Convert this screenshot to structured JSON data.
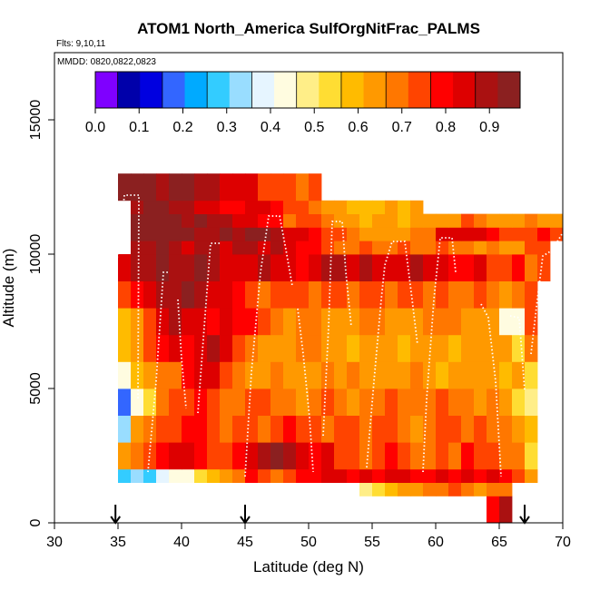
{
  "chart_data": {
    "type": "heatmap",
    "title": "ATOM1 North_America SulfOrgNitFrac_PALMS",
    "flights_label": "Flts: 9,10,11",
    "dates_label": "MMDD: 0820,0822,0823",
    "xlabel": "Latitude (deg N)",
    "ylabel": "Altitude (m)",
    "xlim": [
      30,
      70
    ],
    "ylim": [
      0,
      17500
    ],
    "xticks": [
      30,
      35,
      40,
      45,
      50,
      55,
      60,
      65,
      70
    ],
    "yticks": [
      0,
      5000,
      10000,
      15000
    ],
    "colorbar": {
      "range": [
        0,
        0.97
      ],
      "tick_values": [
        0.0,
        0.1,
        0.2,
        0.3,
        0.4,
        0.5,
        0.6,
        0.7,
        0.8,
        0.9
      ],
      "tick_labels": [
        "0.0",
        "0.1",
        "0.2",
        "0.3",
        "0.4",
        "0.5",
        "0.6",
        "0.7",
        "0.8",
        "0.9"
      ],
      "colors": [
        "#7f00ff",
        "#0000aa",
        "#0000e0",
        "#3366ff",
        "#00aaff",
        "#33ccff",
        "#99ddff",
        "#e6f5ff",
        "#fffce0",
        "#ffee88",
        "#ffdd33",
        "#ffbb00",
        "#ff9900",
        "#ff7700",
        "#ff4400",
        "#ff0000",
        "#dd0000",
        "#aa1111",
        "#8b2020"
      ]
    },
    "arrow_latitudes": [
      34.8,
      45,
      67
    ],
    "lat_bins": [
      34,
      35,
      36,
      37,
      38,
      39,
      40,
      41,
      42,
      43,
      44,
      45,
      46,
      47,
      48,
      49,
      50,
      51,
      52,
      53,
      54,
      55,
      56,
      57,
      58,
      59,
      60,
      61,
      62,
      63,
      64,
      65,
      66,
      67,
      68,
      69,
      70
    ],
    "alt_bin_edges": [
      0,
      1000,
      1500,
      2000,
      3000,
      4000,
      5000,
      6000,
      7000,
      8000,
      9000,
      10000,
      10500,
      11000,
      11500,
      12000,
      13000
    ],
    "cells": [
      [
        null,
        null,
        null,
        null,
        null,
        null,
        null,
        null,
        null,
        null,
        null,
        null,
        null,
        null,
        null,
        null,
        null,
        null,
        null,
        null,
        null,
        null,
        null,
        null,
        null,
        null,
        null,
        null,
        null,
        null,
        0.78,
        0.88,
        null,
        null,
        null,
        null
      ],
      [
        null,
        null,
        null,
        null,
        null,
        null,
        null,
        null,
        null,
        null,
        null,
        null,
        null,
        null,
        null,
        null,
        null,
        null,
        null,
        null,
        0.5,
        0.55,
        0.6,
        0.62,
        0.65,
        0.67,
        0.7,
        0.75,
        0.7,
        0.65,
        0.68,
        0.7,
        null,
        null,
        null,
        null
      ],
      [
        null,
        0.28,
        0.32,
        0.3,
        0.38,
        0.42,
        0.45,
        0.52,
        0.6,
        0.65,
        0.7,
        0.78,
        0.75,
        0.7,
        0.72,
        0.78,
        0.8,
        0.85,
        0.82,
        0.8,
        0.85,
        0.8,
        0.82,
        0.85,
        0.78,
        0.8,
        0.82,
        0.78,
        0.85,
        0.8,
        0.82,
        0.8,
        0.72,
        0.62,
        null,
        null
      ],
      [
        null,
        0.65,
        0.7,
        0.72,
        0.8,
        0.82,
        0.85,
        0.8,
        0.75,
        0.72,
        0.78,
        0.82,
        0.88,
        0.92,
        0.88,
        0.85,
        0.8,
        0.82,
        0.75,
        0.72,
        0.7,
        0.75,
        0.78,
        0.72,
        0.7,
        0.68,
        0.72,
        0.7,
        0.78,
        0.72,
        0.75,
        0.7,
        0.7,
        0.55,
        null,
        null
      ],
      [
        null,
        0.33,
        0.65,
        0.7,
        0.75,
        0.72,
        0.78,
        0.8,
        0.75,
        0.7,
        0.72,
        0.75,
        0.7,
        0.72,
        0.78,
        0.75,
        0.72,
        0.7,
        0.75,
        0.72,
        0.7,
        0.72,
        0.75,
        0.7,
        0.65,
        0.68,
        0.72,
        0.75,
        0.7,
        0.72,
        0.7,
        0.68,
        0.62,
        0.6,
        null,
        null
      ],
      [
        null,
        0.18,
        0.45,
        0.55,
        0.7,
        0.72,
        0.75,
        0.78,
        0.72,
        0.7,
        0.68,
        0.72,
        0.75,
        0.7,
        0.68,
        0.65,
        0.7,
        0.72,
        0.68,
        0.65,
        0.7,
        0.68,
        0.72,
        0.7,
        0.68,
        0.7,
        0.72,
        0.7,
        0.68,
        0.65,
        0.7,
        0.66,
        0.55,
        0.48,
        null,
        null
      ],
      [
        null,
        0.45,
        0.58,
        0.62,
        0.68,
        0.7,
        0.78,
        0.85,
        0.82,
        0.72,
        0.68,
        0.62,
        0.65,
        0.7,
        0.66,
        0.65,
        0.62,
        0.68,
        0.65,
        0.7,
        0.66,
        0.62,
        0.64,
        0.66,
        0.7,
        0.65,
        0.6,
        0.62,
        0.65,
        0.64,
        0.62,
        0.6,
        0.62,
        0.55,
        null,
        null
      ],
      [
        null,
        0.6,
        0.65,
        0.72,
        0.78,
        0.82,
        0.8,
        0.85,
        0.88,
        0.82,
        0.72,
        0.68,
        0.65,
        0.62,
        0.66,
        0.7,
        0.68,
        0.65,
        0.62,
        0.6,
        0.64,
        0.66,
        0.62,
        0.6,
        0.63,
        0.65,
        0.62,
        0.6,
        0.64,
        0.62,
        0.66,
        0.64,
        0.55,
        0.7,
        null,
        null
      ],
      [
        null,
        0.6,
        0.66,
        0.75,
        0.85,
        0.9,
        0.86,
        0.82,
        0.8,
        0.85,
        0.8,
        0.78,
        0.72,
        0.7,
        0.66,
        0.68,
        0.7,
        0.65,
        0.62,
        0.66,
        0.7,
        0.68,
        0.65,
        0.62,
        0.66,
        0.68,
        0.7,
        0.68,
        0.65,
        0.66,
        0.62,
        0.42,
        0.45,
        0.72,
        null,
        null
      ],
      [
        null,
        0.75,
        0.8,
        0.85,
        0.88,
        0.9,
        0.92,
        0.88,
        0.85,
        0.82,
        0.8,
        0.75,
        0.7,
        0.72,
        0.75,
        0.72,
        0.7,
        0.75,
        0.72,
        0.7,
        0.75,
        0.72,
        0.7,
        0.72,
        0.75,
        0.7,
        0.72,
        0.7,
        0.68,
        0.72,
        0.7,
        0.66,
        0.68,
        0.72,
        null,
        null
      ],
      [
        null,
        0.85,
        0.88,
        0.9,
        0.92,
        0.88,
        0.9,
        0.92,
        0.88,
        0.85,
        0.82,
        0.86,
        0.88,
        0.85,
        0.82,
        0.8,
        0.85,
        0.88,
        0.9,
        0.86,
        0.88,
        0.85,
        0.82,
        0.86,
        0.88,
        0.85,
        0.82,
        0.78,
        0.8,
        0.82,
        0.76,
        0.72,
        0.78,
        0.7,
        0.72,
        null
      ],
      [
        null,
        null,
        0.88,
        0.9,
        0.92,
        0.88,
        0.86,
        0.9,
        0.88,
        0.85,
        0.88,
        0.9,
        0.86,
        0.88,
        0.82,
        0.8,
        0.78,
        0.72,
        0.7,
        0.68,
        0.72,
        0.7,
        0.68,
        0.72,
        0.7,
        0.68,
        0.72,
        0.7,
        0.68,
        0.65,
        0.7,
        0.66,
        0.62,
        0.72,
        0.75,
        null
      ],
      [
        null,
        null,
        0.92,
        0.95,
        0.95,
        0.95,
        0.92,
        0.88,
        0.9,
        0.92,
        0.9,
        0.95,
        0.92,
        0.88,
        0.86,
        0.85,
        0.8,
        0.76,
        0.72,
        0.7,
        0.66,
        0.62,
        0.62,
        0.65,
        0.68,
        0.7,
        0.82,
        0.85,
        0.86,
        0.84,
        0.8,
        0.75,
        0.72,
        0.76,
        0.8,
        0.72
      ],
      [
        null,
        null,
        0.95,
        0.95,
        0.92,
        0.95,
        0.9,
        0.92,
        0.88,
        0.9,
        0.86,
        0.85,
        0.8,
        0.78,
        0.7,
        0.75,
        0.72,
        0.7,
        0.66,
        0.62,
        0.6,
        0.62,
        0.66,
        0.6,
        0.62,
        0.64,
        0.66,
        0.66,
        0.72,
        0.7,
        0.66,
        0.62,
        0.64,
        0.7,
        0.66,
        0.62
      ],
      [
        null,
        null,
        0.9,
        0.95,
        0.92,
        0.9,
        0.88,
        0.85,
        0.82,
        0.8,
        0.78,
        0.85,
        0.82,
        0.8,
        0.75,
        0.72,
        0.7,
        0.66,
        0.62,
        0.58,
        0.6,
        0.58,
        0.62,
        0.6,
        0.62,
        null,
        null,
        null,
        null,
        null,
        null,
        null,
        null,
        null,
        null,
        null
      ],
      [
        null,
        0.92,
        0.95,
        0.92,
        0.9,
        0.92,
        0.95,
        0.88,
        0.9,
        0.85,
        0.86,
        0.82,
        0.75,
        0.72,
        0.76,
        0.7,
        0.74,
        null,
        null,
        null,
        null,
        null,
        null,
        null,
        null,
        null,
        null,
        null,
        null,
        null,
        null,
        null,
        null,
        null,
        null,
        null
      ]
    ]
  }
}
